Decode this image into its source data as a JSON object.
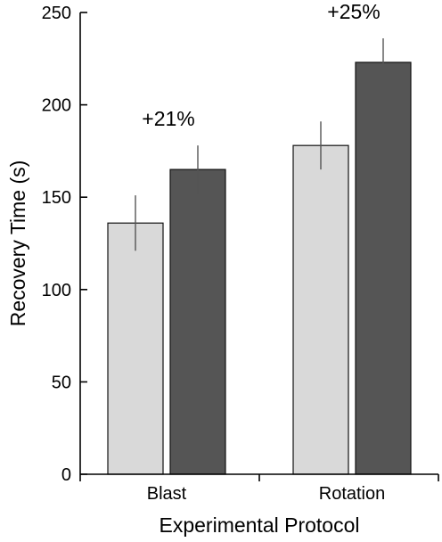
{
  "chart_data": {
    "type": "bar",
    "categories": [
      "Blast",
      "Rotation"
    ],
    "series": [
      {
        "values": [
          136,
          178
        ],
        "errors": [
          15,
          13
        ],
        "color": "#d9d9d9"
      },
      {
        "values": [
          165,
          223
        ],
        "errors": [
          13,
          13
        ],
        "color": "#555555"
      }
    ],
    "annotations": [
      "+21%",
      "+25%"
    ],
    "xlabel": "Experimental Protocol",
    "ylabel": "Recovery Time (s)",
    "ylim": [
      0,
      250
    ],
    "yticks": [
      0,
      50,
      100,
      150,
      200,
      250
    ],
    "grid": false
  }
}
